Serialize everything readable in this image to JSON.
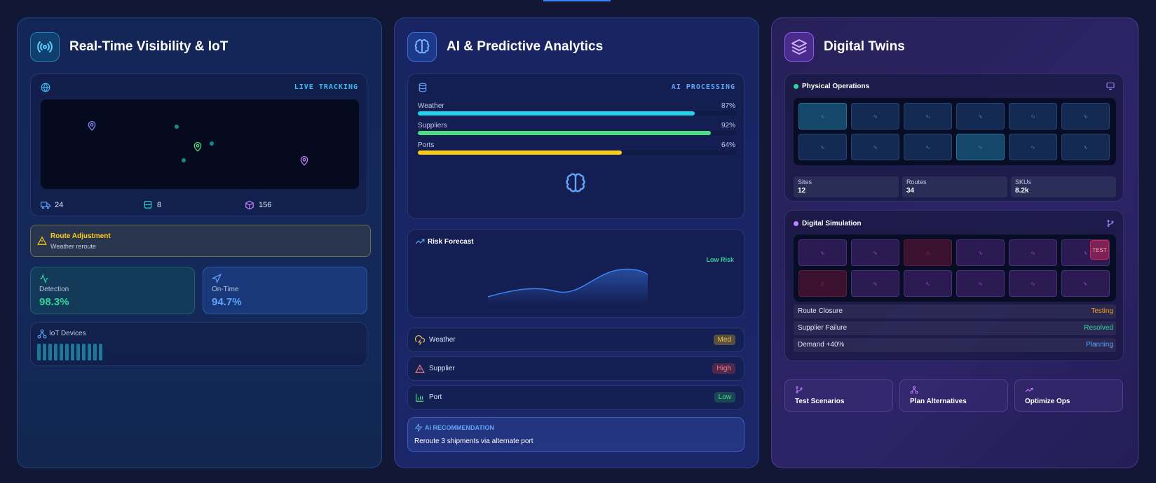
{
  "panels": {
    "visibility": {
      "title": "Real-Time Visibility & IoT",
      "map_status": "LIVE TRACKING",
      "stats": [
        {
          "icon": "truck-icon",
          "value": "24"
        },
        {
          "icon": "bus-icon",
          "value": "8"
        },
        {
          "icon": "package-icon",
          "value": "156"
        }
      ],
      "alert": {
        "title": "Route Adjustment",
        "subtitle": "Weather reroute",
        "icon": "warning-icon"
      },
      "kpis": [
        {
          "label": "Detection",
          "value": "98.3%",
          "icon": "activity-icon",
          "color": "#34d399"
        },
        {
          "label": "On-Time",
          "value": "94.7%",
          "icon": "navigation-icon",
          "color": "#60a5fa"
        }
      ],
      "iot_label": "IoT Devices",
      "iot_bar_count": 12
    },
    "analytics": {
      "title": "AI & Predictive Analytics",
      "status": "AI PROCESSING",
      "factors": [
        {
          "label": "Weather",
          "percent": "87%",
          "value": 0.87,
          "color": "#22d3ee"
        },
        {
          "label": "Suppliers",
          "percent": "92%",
          "value": 0.92,
          "color": "#4ade80"
        },
        {
          "label": "Ports",
          "percent": "64%",
          "value": 0.64,
          "color": "#facc15"
        }
      ],
      "risk": {
        "title": "Risk Forecast",
        "level": "Low Risk"
      },
      "risk_items": [
        {
          "label": "Weather",
          "badge": "Med",
          "icon": "cloud-lightning-icon",
          "color": "#e8c547",
          "bg": "rgba(170,140,40,0.45)"
        },
        {
          "label": "Supplier",
          "badge": "High",
          "icon": "alert-triangle-icon",
          "color": "#f08080",
          "bg": "rgba(150,50,70,0.45)"
        },
        {
          "label": "Port",
          "badge": "Low",
          "icon": "bar-chart-icon",
          "color": "#4ade80",
          "bg": "rgba(30,120,90,0.45)"
        }
      ],
      "recommendation": {
        "title": "AI RECOMMENDATION",
        "text": "Reroute 3 shipments via alternate port"
      }
    },
    "twins": {
      "title": "Digital Twins",
      "physical": {
        "title": "Physical Operations",
        "metrics": [
          {
            "label": "Sites",
            "value": "12"
          },
          {
            "label": "Routes",
            "value": "34"
          },
          {
            "label": "SKUs",
            "value": "8.2k"
          }
        ]
      },
      "simulation": {
        "title": "Digital Simulation",
        "test_badge": "TEST",
        "scenarios": [
          {
            "label": "Route Closure",
            "status": "Testing",
            "color": "#f59e0b"
          },
          {
            "label": "Supplier Failure",
            "status": "Resolved",
            "color": "#34d399"
          },
          {
            "label": "Demand +40%",
            "status": "Planning",
            "color": "#60a5fa"
          }
        ]
      },
      "actions": [
        {
          "label": "Test Scenarios",
          "icon": "git-branch-icon"
        },
        {
          "label": "Plan Alternatives",
          "icon": "network-icon"
        },
        {
          "label": "Optimize Ops",
          "icon": "trending-up-icon"
        }
      ]
    }
  }
}
